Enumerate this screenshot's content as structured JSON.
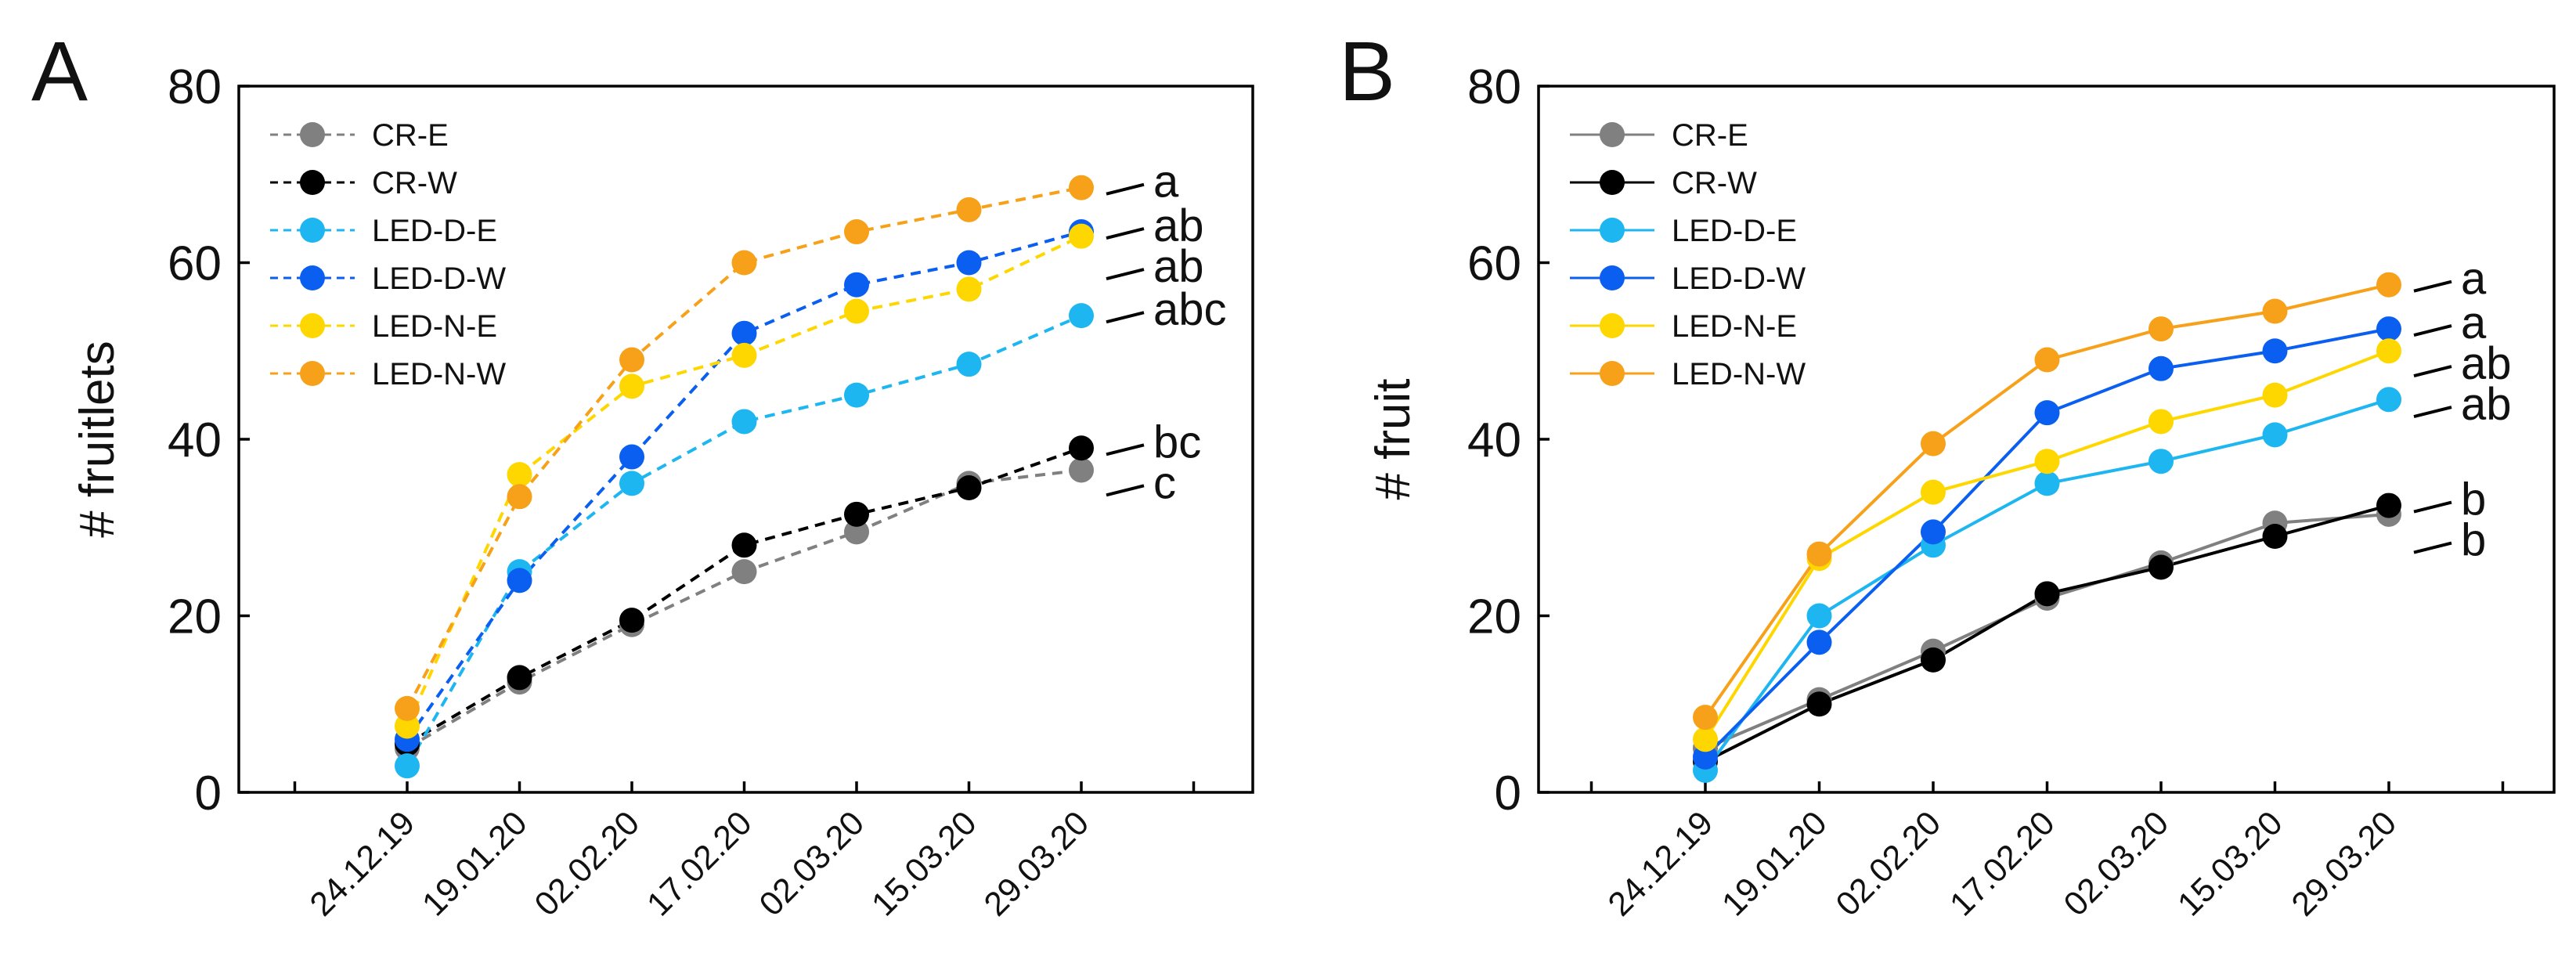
{
  "chart_data": [
    {
      "type": "line",
      "panel_label": "A",
      "ylabel": "# fruitlets",
      "line_style": "dashed",
      "ylim": [
        0,
        80
      ],
      "yticks": [
        "0",
        "20",
        "40",
        "60",
        "80"
      ],
      "categories": [
        "24.12.19",
        "19.01.20",
        "02.02.20",
        "17.02.20",
        "02.03.20",
        "15.03.20",
        "29.03.20"
      ],
      "legend_position": "top-left",
      "series": [
        {
          "name": "CR-E",
          "color": "#808080",
          "values": [
            5,
            12.5,
            19,
            25,
            29.5,
            35,
            36.5
          ]
        },
        {
          "name": "CR-W",
          "color": "#000000",
          "values": [
            5.5,
            13,
            19.5,
            28,
            31.5,
            34.5,
            39
          ]
        },
        {
          "name": "LED-D-E",
          "color": "#1EB6F0",
          "values": [
            3,
            25,
            35,
            42,
            45,
            48.5,
            54
          ]
        },
        {
          "name": "LED-D-W",
          "color": "#0A5FF0",
          "values": [
            6,
            24,
            38,
            52,
            57.5,
            60,
            63.5
          ]
        },
        {
          "name": "LED-N-E",
          "color": "#FFD700",
          "values": [
            7.5,
            36,
            46,
            49.5,
            54.5,
            57,
            63
          ]
        },
        {
          "name": "LED-N-W",
          "color": "#F7A11A",
          "values": [
            9.5,
            33.5,
            49,
            60,
            63.5,
            66,
            68.5
          ]
        }
      ],
      "annotations": [
        {
          "text": "a",
          "series": "LED-N-W"
        },
        {
          "text": "ab",
          "series": "LED-D-W"
        },
        {
          "text": "ab",
          "series": "LED-N-E"
        },
        {
          "text": "abc",
          "series": "LED-D-E"
        },
        {
          "text": "bc",
          "series": "CR-W"
        },
        {
          "text": "c",
          "series": "CR-E"
        }
      ]
    },
    {
      "type": "line",
      "panel_label": "B",
      "ylabel": "# fruit",
      "line_style": "solid",
      "ylim": [
        0,
        80
      ],
      "yticks": [
        "0",
        "20",
        "40",
        "60",
        "80"
      ],
      "categories": [
        "24.12.19",
        "19.01.20",
        "02.02.20",
        "17.02.20",
        "02.03.20",
        "15.03.20",
        "29.03.20"
      ],
      "legend_position": "top-left",
      "series": [
        {
          "name": "CR-E",
          "color": "#808080",
          "values": [
            5,
            10.5,
            16,
            22,
            26,
            30.5,
            31.5
          ]
        },
        {
          "name": "CR-W",
          "color": "#000000",
          "values": [
            3.5,
            10,
            15,
            22.5,
            25.5,
            29,
            32.5
          ]
        },
        {
          "name": "LED-D-E",
          "color": "#1EB6F0",
          "values": [
            2.5,
            20,
            28,
            35,
            37.5,
            40.5,
            44.5
          ]
        },
        {
          "name": "LED-D-W",
          "color": "#0A5FF0",
          "values": [
            4,
            17,
            29.5,
            43,
            48,
            50,
            52.5
          ]
        },
        {
          "name": "LED-N-E",
          "color": "#FFD700",
          "values": [
            6,
            26.5,
            34,
            37.5,
            42,
            45,
            50
          ]
        },
        {
          "name": "LED-N-W",
          "color": "#F7A11A",
          "values": [
            8.5,
            27,
            39.5,
            49,
            52.5,
            54.5,
            57.5
          ]
        }
      ],
      "annotations": [
        {
          "text": "a",
          "series": "LED-N-W"
        },
        {
          "text": "a",
          "series": "LED-D-W"
        },
        {
          "text": "ab",
          "series": "LED-N-E"
        },
        {
          "text": "ab",
          "series": "LED-D-E"
        },
        {
          "text": "b",
          "series": "CR-W"
        },
        {
          "text": "b",
          "series": "CR-E"
        }
      ]
    }
  ]
}
